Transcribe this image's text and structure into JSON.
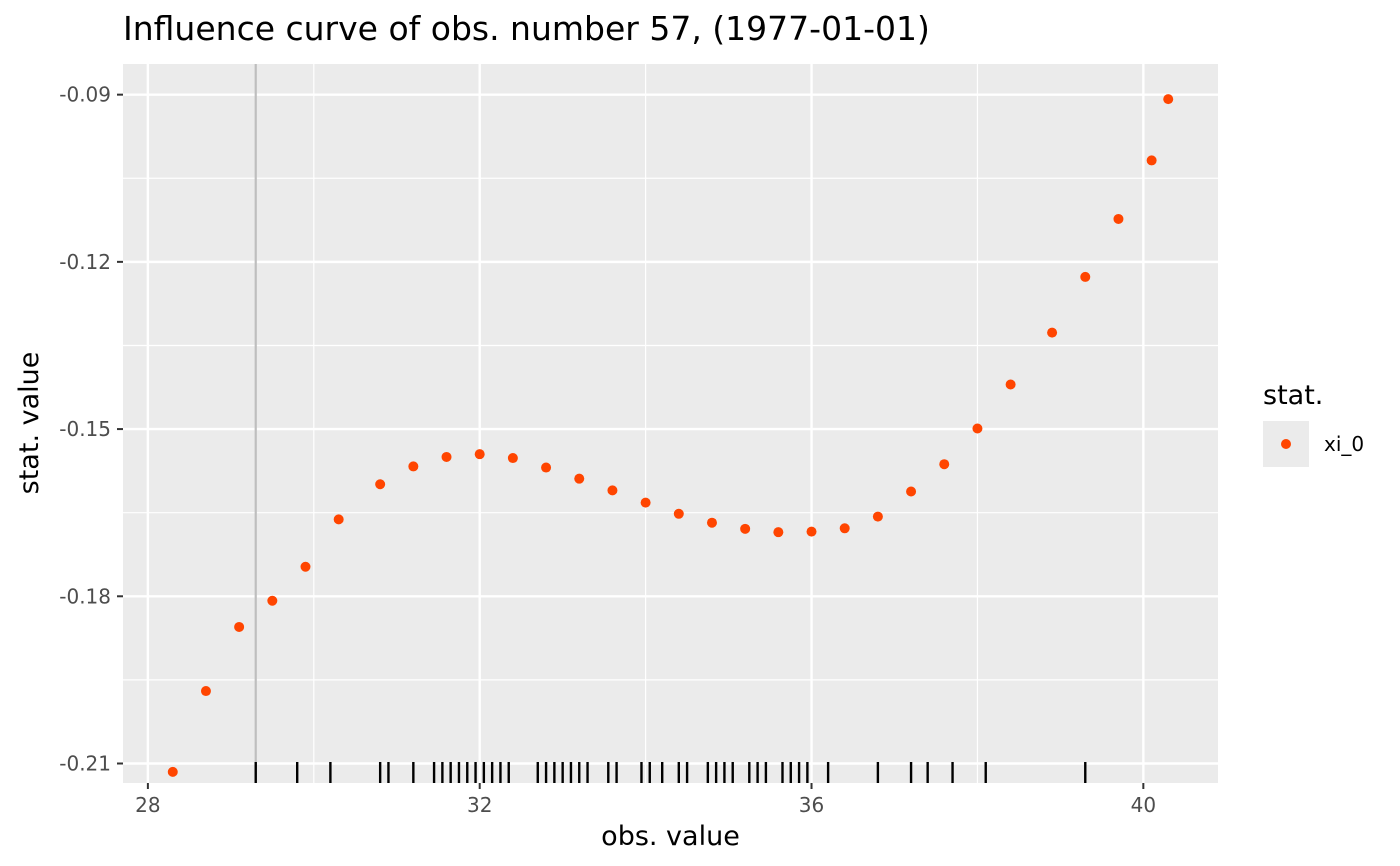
{
  "chart_data": {
    "type": "scatter",
    "title": "Influence curve of obs. number 57, (1977-01-01)",
    "xlabel": "obs. value",
    "ylabel": "stat. value",
    "xlim": [
      27.7,
      40.9
    ],
    "ylim": [
      -0.2135,
      -0.0845
    ],
    "x_ticks": [
      28,
      32,
      36,
      40
    ],
    "x_tick_labels": [
      "28",
      "32",
      "36",
      "40"
    ],
    "y_ticks": [
      -0.21,
      -0.18,
      -0.15,
      -0.12,
      -0.09
    ],
    "y_tick_labels": [
      "-0.21",
      "-0.18",
      "-0.15",
      "-0.12",
      "-0.09"
    ],
    "grid": true,
    "background": "#ebebeb",
    "gridline_color": "#ffffff",
    "point_color": "#ff4500",
    "legend": {
      "title": "stat.",
      "placement": "right",
      "entries": [
        {
          "label": "xi_0",
          "color": "#ff4500"
        }
      ]
    },
    "reference_line": {
      "x": 29.3,
      "color": "#bebebe"
    },
    "series": [
      {
        "name": "xi_0",
        "x": [
          28.3,
          28.7,
          29.1,
          29.5,
          29.9,
          30.3,
          30.8,
          31.2,
          31.6,
          32.0,
          32.4,
          32.8,
          33.2,
          33.6,
          34.0,
          34.4,
          34.8,
          35.2,
          35.6,
          36.0,
          36.4,
          36.8,
          37.2,
          37.6,
          38.0,
          38.4,
          38.9,
          39.3,
          39.7,
          40.1,
          40.3
        ],
        "y": [
          -0.2115,
          -0.197,
          -0.1855,
          -0.1808,
          -0.1747,
          -0.1662,
          -0.1599,
          -0.1567,
          -0.155,
          -0.1545,
          -0.1552,
          -0.1569,
          -0.1589,
          -0.161,
          -0.1632,
          -0.1652,
          -0.1668,
          -0.1679,
          -0.1685,
          -0.1684,
          -0.1678,
          -0.1657,
          -0.1612,
          -0.1563,
          -0.1499,
          -0.142,
          -0.1327,
          -0.1227,
          -0.1123,
          -0.1018,
          -0.0908
        ]
      }
    ],
    "rug_x": [
      29.3,
      29.8,
      30.2,
      30.8,
      30.9,
      31.2,
      31.45,
      31.55,
      31.65,
      31.75,
      31.85,
      31.95,
      32.05,
      32.15,
      32.25,
      32.35,
      32.7,
      32.8,
      32.9,
      33.0,
      33.1,
      33.2,
      33.3,
      33.55,
      33.65,
      33.95,
      34.05,
      34.2,
      34.4,
      34.5,
      34.75,
      34.85,
      34.95,
      35.05,
      35.25,
      35.35,
      35.45,
      35.65,
      35.75,
      35.85,
      35.95,
      36.2,
      36.8,
      37.2,
      37.4,
      37.7,
      38.1,
      39.3
    ]
  }
}
